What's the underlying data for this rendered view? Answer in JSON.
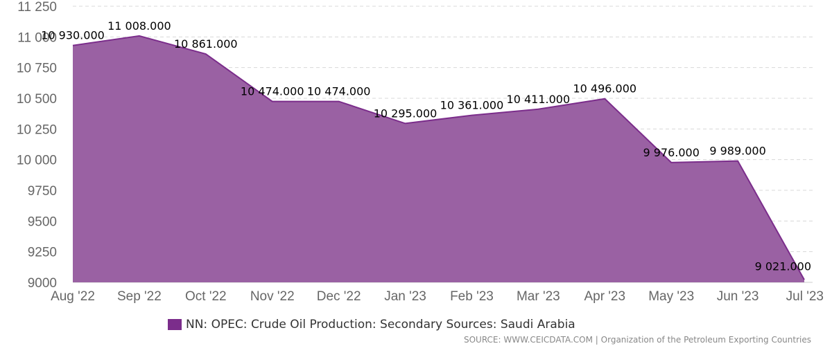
{
  "chart_data": {
    "type": "area",
    "categories": [
      "Aug '22",
      "Sep '22",
      "Oct '22",
      "Nov '22",
      "Dec '22",
      "Jan '23",
      "Feb '23",
      "Mar '23",
      "Apr '23",
      "May '23",
      "Jun '23",
      "Jul '23"
    ],
    "series": [
      {
        "name": "NN: OPEC: Crude Oil Production: Secondary Sources: Saudi Arabia",
        "values": [
          10930,
          11008,
          10861,
          10474,
          10474,
          10295,
          10361,
          10411,
          10496,
          9976,
          9989,
          9021
        ],
        "data_labels": [
          "10 930.000",
          "11 008.000",
          "10 861.000",
          "10 474.000",
          "10 474.000",
          "10 295.000",
          "10 361.000",
          "10 411.000",
          "10 496.000",
          "9 976.000",
          "9 989.000",
          "9 021.000"
        ],
        "color": "#7b2d8b",
        "fill_color": "#9a61a3"
      }
    ],
    "ylim": [
      9000,
      11250
    ],
    "yticks": [
      {
        "value": 9000,
        "label": "9000"
      },
      {
        "value": 9250,
        "label": "9250"
      },
      {
        "value": 9500,
        "label": "9500"
      },
      {
        "value": 9750,
        "label": "9750"
      },
      {
        "value": 10000,
        "label": "10 000"
      },
      {
        "value": 10250,
        "label": "10 250"
      },
      {
        "value": 10500,
        "label": "10 500"
      },
      {
        "value": 10750,
        "label": "10 750"
      },
      {
        "value": 11000,
        "label": "11 000"
      },
      {
        "value": 11250,
        "label": "11 250"
      }
    ],
    "grid": true,
    "legend_position": "bottom"
  },
  "source": "SOURCE: WWW.CEICDATA.COM | Organization of the Petroleum Exporting Countries"
}
